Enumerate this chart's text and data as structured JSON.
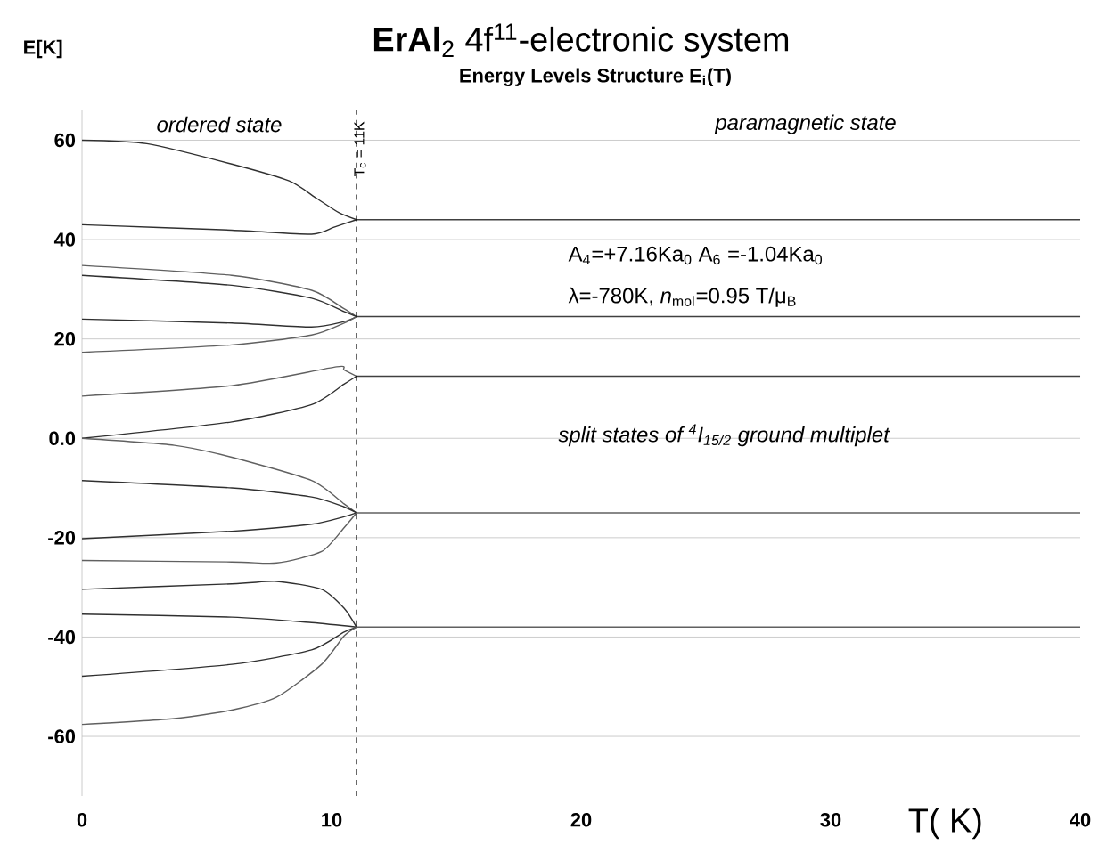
{
  "chart_data": {
    "type": "line",
    "title": "**ErAl**$_{2}$ 4f$^{11}$-electronic system",
    "subtitle": "Energy Levels Structure E$_{i}$(T)",
    "xlabel": "T( K)",
    "ylabel": "E[K]",
    "xlim": [
      0,
      40
    ],
    "ylim": [
      -72,
      66
    ],
    "xticks": [
      0,
      10,
      20,
      30,
      40
    ],
    "yticks": [
      -60,
      -40,
      -20,
      {
        "value": 0,
        "label": "0.0"
      },
      20,
      40,
      60
    ],
    "grid": "y",
    "line_style": "solid",
    "annotations": [
      "ordered state",
      "paramagnetic state",
      "A$_{4}$=+7.16Ka$_{0}$  A$_{6}$ =-1.04Ka$_{0}$",
      "λ=-780K,     *n*$_{mol}$=0.95 T/μ$_{B}$",
      "split states of $^{4}$*I*$_{15/2}$ ground multiplet"
    ],
    "ref_lines": [
      {
        "axis": "x",
        "value": 11,
        "label": "T$_{c}$ = 11K",
        "line_style": "dashed",
        "color": "#000000"
      }
    ],
    "series": [
      {
        "color": "#303030",
        "x": [
          0,
          2.6,
          6,
          8.3,
          9.4,
          10.3,
          11
        ],
        "values": [
          60,
          59.3,
          55.2,
          51.8,
          48.3,
          45.4,
          44
        ]
      },
      {
        "color": "#303030",
        "x": [
          0,
          6,
          9.2,
          10.1,
          11
        ],
        "values": [
          43,
          41.9,
          41.1,
          42.5,
          44
        ]
      },
      {
        "color": "#606060",
        "x": [
          0,
          6,
          9.2,
          10.5,
          11
        ],
        "values": [
          34.8,
          32.8,
          29.8,
          26.1,
          24.5
        ]
      },
      {
        "color": "#303030",
        "x": [
          0,
          6,
          9.2,
          10.5,
          11
        ],
        "values": [
          32.8,
          30.8,
          28.2,
          25.5,
          24.5
        ]
      },
      {
        "color": "#303030",
        "x": [
          0,
          6,
          9.2,
          10.5,
          11
        ],
        "values": [
          24,
          23.2,
          22.4,
          23.5,
          24.5
        ]
      },
      {
        "color": "#606060",
        "x": [
          0,
          6,
          9.2,
          10.5,
          11
        ],
        "values": [
          17.3,
          18.8,
          20.8,
          23.2,
          24.5
        ]
      },
      {
        "color": "#606060",
        "x": [
          0,
          6,
          10.2,
          10.5,
          11
        ],
        "values": [
          8.5,
          10.6,
          14.4,
          13.8,
          12.5
        ]
      },
      {
        "color": "#303030",
        "x": [
          0,
          6,
          9.2,
          10.5,
          11
        ],
        "values": [
          0,
          3.3,
          6.8,
          10.9,
          12.5
        ]
      },
      {
        "color": "#606060",
        "x": [
          0,
          3.7,
          6,
          9.2,
          10.5,
          11
        ],
        "values": [
          0,
          -1.4,
          -3.8,
          -8.5,
          -13.2,
          -15
        ]
      },
      {
        "color": "#303030",
        "x": [
          0,
          6,
          9.2,
          10.5,
          11
        ],
        "values": [
          -8.5,
          -10,
          -11.8,
          -13.8,
          -15
        ]
      },
      {
        "color": "#303030",
        "x": [
          0,
          6,
          9.2,
          10.5,
          11
        ],
        "values": [
          -20.2,
          -18.7,
          -17.3,
          -15.8,
          -15
        ]
      },
      {
        "color": "#606060",
        "x": [
          0,
          6,
          7.8,
          9.6,
          10.5,
          11
        ],
        "values": [
          -24.6,
          -24.9,
          -25.1,
          -22.8,
          -18,
          -15
        ]
      },
      {
        "color": "#303030",
        "x": [
          0,
          6,
          7.8,
          9.6,
          10.5,
          11
        ],
        "values": [
          -30.4,
          -29.3,
          -28.8,
          -30.4,
          -34.2,
          -38
        ]
      },
      {
        "color": "#303030",
        "x": [
          0,
          6,
          9.2,
          11
        ],
        "values": [
          -35.4,
          -36,
          -37.1,
          -38
        ]
      },
      {
        "color": "#303030",
        "x": [
          0,
          6,
          9.2,
          10.5,
          11
        ],
        "values": [
          -47.9,
          -45.5,
          -42.6,
          -39,
          -38
        ]
      },
      {
        "color": "#606060",
        "x": [
          0,
          3.7,
          6,
          7.8,
          9.6,
          10.5,
          11
        ],
        "values": [
          -57.6,
          -56.4,
          -54.7,
          -52.1,
          -45.5,
          -39.8,
          -38
        ]
      },
      {
        "color": "#404040",
        "x": [
          11,
          40
        ],
        "values": [
          44,
          44
        ]
      },
      {
        "color": "#404040",
        "x": [
          11,
          40
        ],
        "values": [
          24.5,
          24.5
        ]
      },
      {
        "color": "#404040",
        "x": [
          11,
          40
        ],
        "values": [
          12.5,
          12.5
        ]
      },
      {
        "color": "#606060",
        "x": [
          11,
          40
        ],
        "values": [
          -15,
          -15
        ]
      },
      {
        "color": "#606060",
        "x": [
          11,
          40
        ],
        "values": [
          -38,
          -38
        ]
      }
    ]
  }
}
